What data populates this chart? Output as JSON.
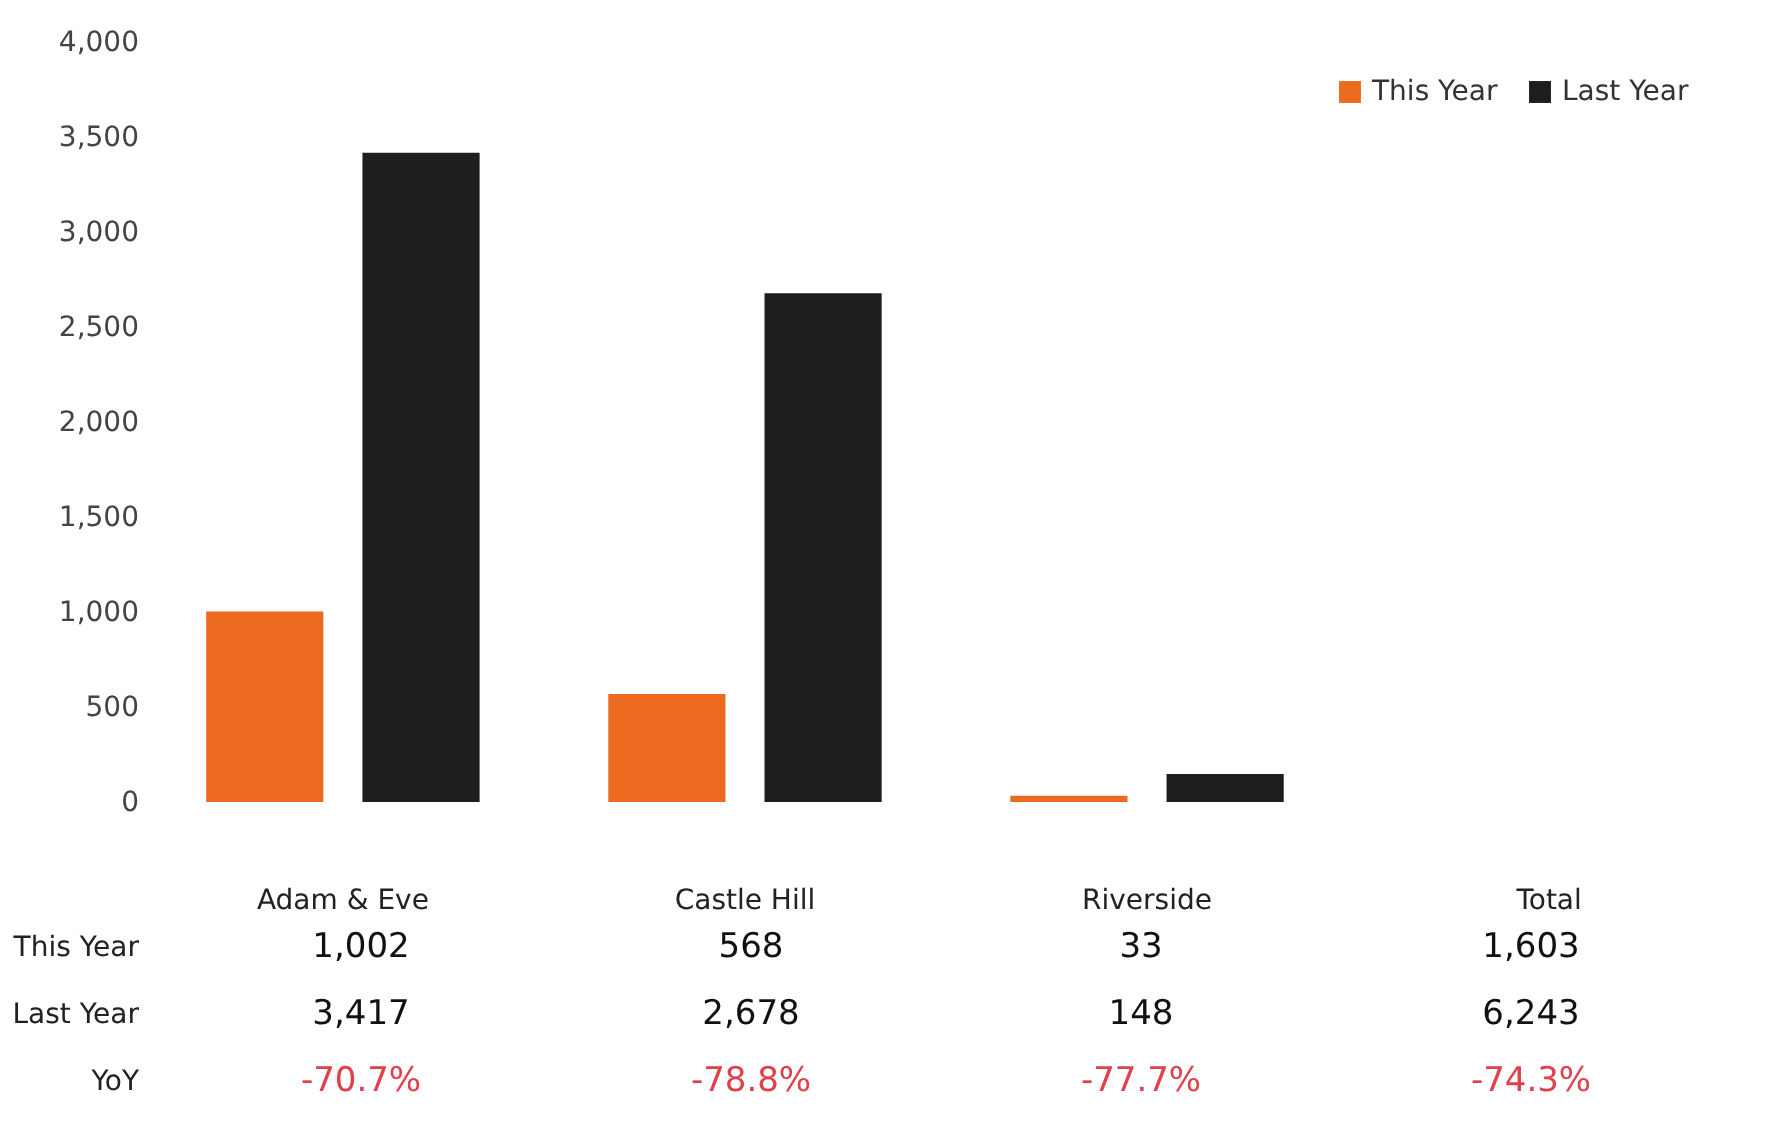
{
  "chart_data": {
    "type": "bar",
    "categories": [
      "Adam & Eve",
      "Castle Hill",
      "Riverside",
      "Total"
    ],
    "series": [
      {
        "name": "This Year",
        "color": "#eb6a1f",
        "values": [
          1002,
          568,
          33,
          null
        ],
        "value_labels": [
          "1,002",
          "568",
          "33",
          "1,603"
        ]
      },
      {
        "name": "Last Year",
        "color": "#1e1e1e",
        "values": [
          3417,
          2678,
          148,
          null
        ],
        "value_labels": [
          "3,417",
          "2,678",
          "148",
          "6,243"
        ]
      }
    ],
    "annotations": [
      "YoY",
      "-70.7%",
      "-78.8%",
      "-77.7%",
      "-74.3%"
    ],
    "ylim": [
      0,
      4000
    ],
    "yticks": [
      0,
      500,
      {
        "value": 1000,
        "label": "1,000"
      },
      {
        "value": 1500,
        "label": "1,500"
      },
      {
        "value": 2000,
        "label": "2,000"
      },
      {
        "value": 2500,
        "label": "2,500"
      },
      {
        "value": 3000,
        "label": "3,000"
      },
      {
        "value": 3500,
        "label": "3,500"
      },
      {
        "value": 4000,
        "label": "4,000"
      }
    ],
    "grid": false,
    "legend": "top right"
  }
}
